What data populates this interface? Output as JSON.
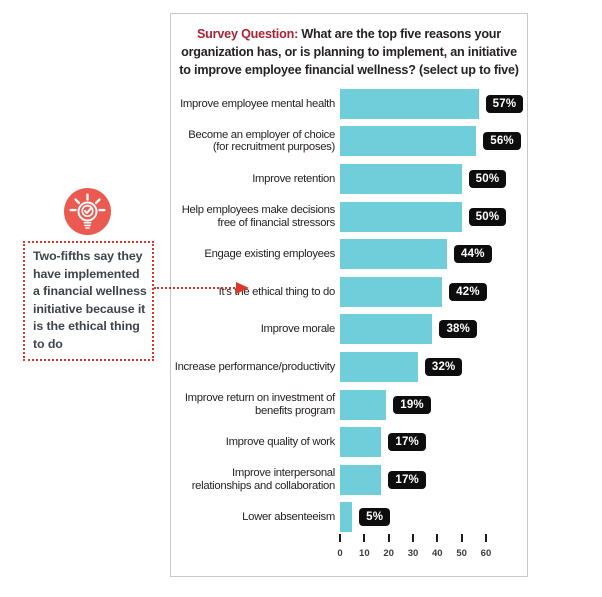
{
  "panel": {
    "title_prefix": "Survey Question:",
    "title_rest": " What are the top five reasons your organization has, or is planning to implement, an initiative to improve employee financial wellness? (select up to five)"
  },
  "chart_data": {
    "type": "bar",
    "orientation": "horizontal",
    "categories": [
      "Improve employee mental health",
      "Become an employer of choice (for recruitment purposes)",
      "Improve retention",
      "Help employees make decisions free of financial stressors",
      "Engage existing employees",
      "It’s the ethical thing to do",
      "Improve morale",
      "Increase performance/productivity",
      "Improve return on investment of benefits program",
      "Improve quality of work",
      "Improve interpersonal relationships and collaboration",
      "Lower absenteeism"
    ],
    "values": [
      57,
      56,
      50,
      50,
      44,
      42,
      38,
      32,
      19,
      17,
      17,
      5
    ],
    "value_suffix": "%",
    "data_labels": [
      "57%",
      "56%",
      "50%",
      "50%",
      "44%",
      "42%",
      "38%",
      "32%",
      "19%",
      "17%",
      "17%",
      "5%"
    ],
    "xlim": [
      0,
      60
    ],
    "axis_ticks": [
      0,
      10,
      20,
      30,
      40,
      50,
      60
    ],
    "grid": false,
    "legend": false,
    "bar_color": "#6fced9",
    "badge_bg": "#0d0d0d",
    "badge_text_color": "#ffffff",
    "highlighted_category": "It’s the ethical thing to do"
  },
  "callout": {
    "text": "Two-fifths say they have implemented a financial wellness initiative because it is the ethical thing to do",
    "icon": "lightbulb-check-icon",
    "arrow_target": "It’s the ethical thing to do",
    "accent_color": "#d8352c",
    "icon_color": "#ea5a50"
  },
  "colors": {
    "title_accent": "#a82334",
    "text": "#262224",
    "panel_border": "#c9c9c9",
    "bar": "#6fced9",
    "badge": "#0d0d0d"
  }
}
